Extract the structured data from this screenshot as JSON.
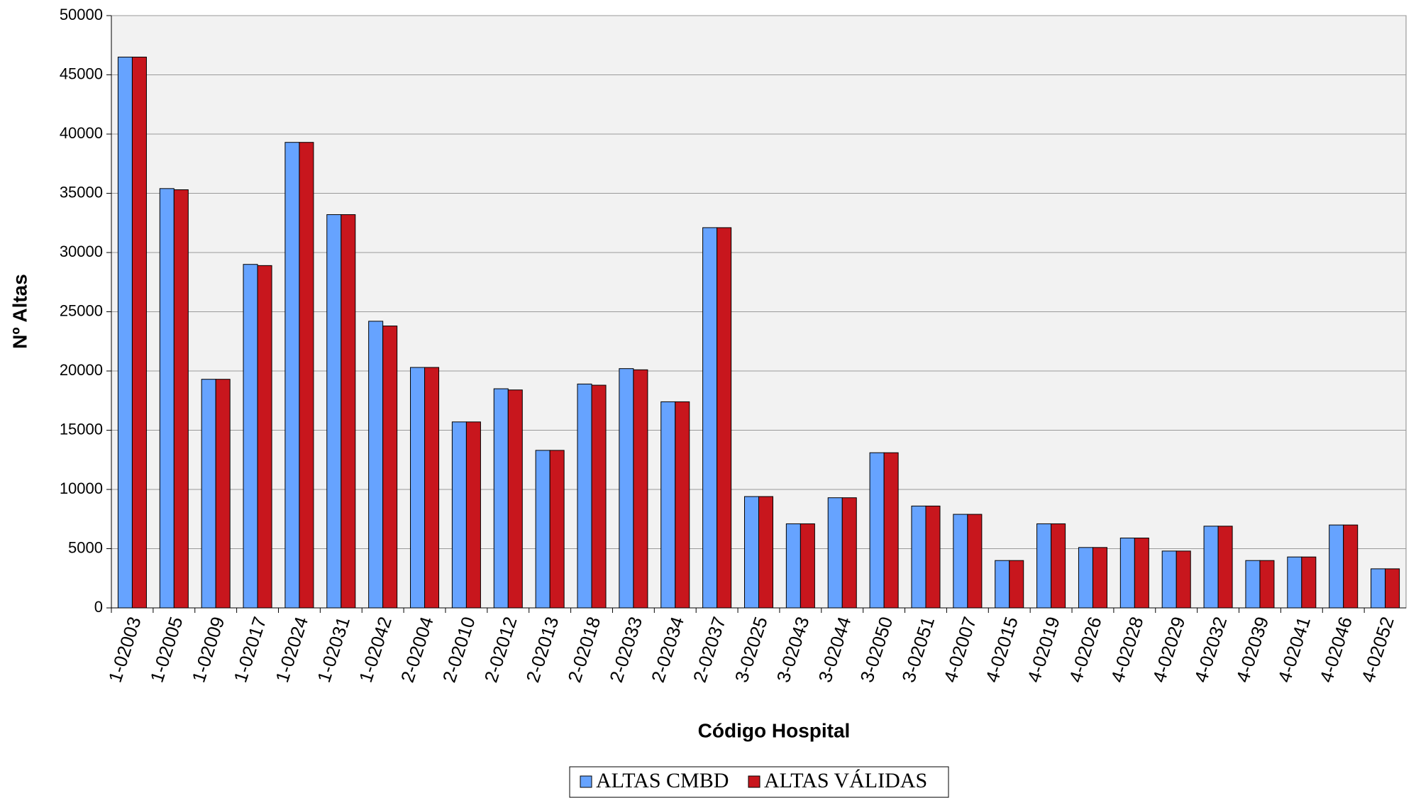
{
  "chart_data": {
    "type": "bar",
    "x_label": "Código Hospital",
    "y_label": "Nº Altas",
    "categories": [
      "1-02003",
      "1-02005",
      "1-02009",
      "1-02017",
      "1-02024",
      "1-02031",
      "1-02042",
      "2-02004",
      "2-02010",
      "2-02012",
      "2-02013",
      "2-02018",
      "2-02033",
      "2-02034",
      "2-02037",
      "3-02025",
      "3-02043",
      "3-02044",
      "3-02050",
      "3-02051",
      "4-02007",
      "4-02015",
      "4-02019",
      "4-02026",
      "4-02028",
      "4-02029",
      "4-02032",
      "4-02039",
      "4-02041",
      "4-02046",
      "4-02052"
    ],
    "series": [
      {
        "name": "ALTAS CMBD",
        "color": "#66a3ff",
        "values": [
          46500,
          35400,
          19300,
          29000,
          39300,
          33200,
          24200,
          20300,
          15700,
          18500,
          13300,
          18900,
          20200,
          17400,
          32100,
          9400,
          7100,
          9300,
          13100,
          8600,
          7900,
          4000,
          7100,
          5100,
          5900,
          4800,
          6900,
          4000,
          4300,
          7000,
          3300
        ]
      },
      {
        "name": "ALTAS VÁLIDAS",
        "color": "#c8161d",
        "values": [
          46500,
          35300,
          19300,
          28900,
          39300,
          33200,
          23800,
          20300,
          15700,
          18400,
          13300,
          18800,
          20100,
          17400,
          32100,
          9400,
          7100,
          9300,
          13100,
          8600,
          7900,
          4000,
          7100,
          5100,
          5900,
          4800,
          6900,
          4000,
          4300,
          7000,
          3300
        ]
      }
    ],
    "ylim": [
      0,
      50000
    ],
    "yticks": [
      0,
      5000,
      10000,
      15000,
      20000,
      25000,
      30000,
      35000,
      40000,
      45000,
      50000
    ],
    "grid": true,
    "legend": "bottom"
  }
}
